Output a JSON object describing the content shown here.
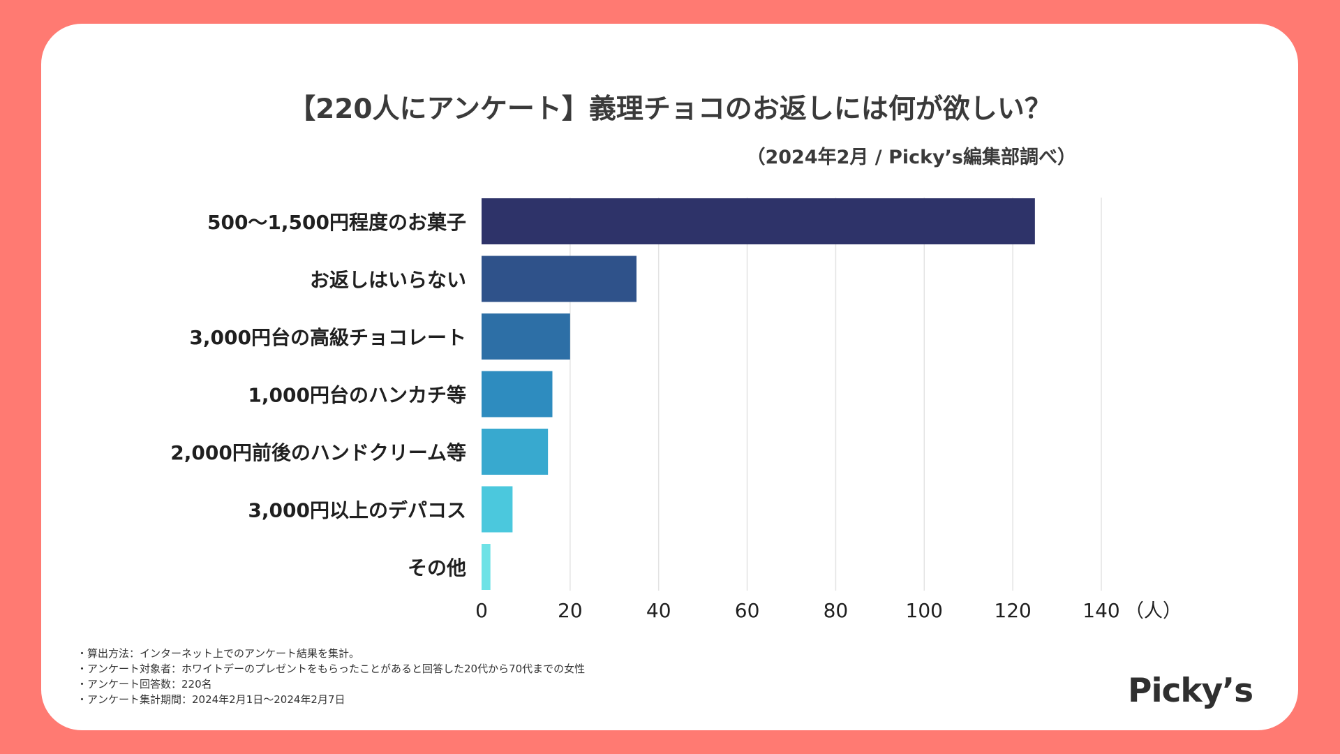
{
  "header": {
    "title": "【220人にアンケート】義理チョコのお返しには何が欲しい？",
    "subtitle": "（2024年2月 / Picky’s編集部調べ）"
  },
  "chart_data": {
    "type": "bar",
    "orientation": "horizontal",
    "categories": [
      "500〜1,500円程度のお菓子",
      "お返しはいらない",
      "3,000円台の高級チョコレート",
      "1,000円台のハンカチ等",
      "2,000円前後のハンドクリーム等",
      "3,000円以上のデパコス",
      "その他"
    ],
    "values": [
      125,
      35,
      20,
      16,
      15,
      7,
      2
    ],
    "colors": [
      "#2e3369",
      "#2f528a",
      "#2d6fa6",
      "#2e8cbf",
      "#38a9cf",
      "#4bc8dd",
      "#6ee2e6"
    ],
    "xlim": [
      0,
      140
    ],
    "xticks": [
      0,
      20,
      40,
      60,
      80,
      100,
      120,
      140
    ],
    "xunit": "（人）",
    "grid": true
  },
  "notes": [
    "・算出方法：インターネット上でのアンケート結果を集計。",
    "・アンケート対象者：ホワイトデーのプレゼントをもらったことがあると回答した20代から70代までの女性",
    "・アンケート回答数：220名",
    "・アンケート集計期間：2024年2月1日〜2024年2月7日"
  ],
  "logo": {
    "text": "Picky’s"
  }
}
